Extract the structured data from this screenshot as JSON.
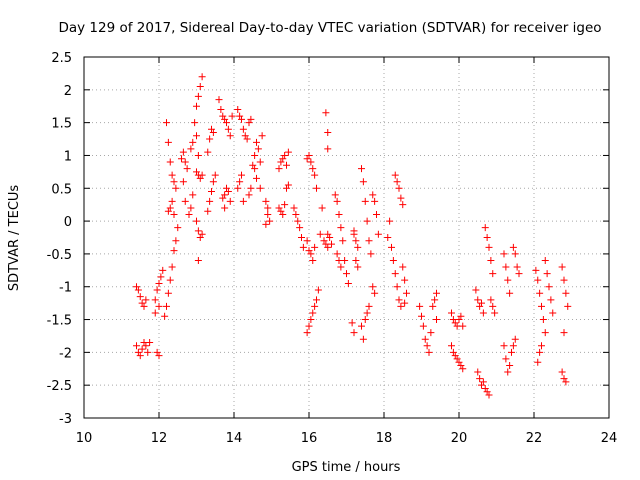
{
  "chart_data": {
    "type": "scatter",
    "title": "Day 129 of 2017, Sidereal Day-to-day VTEC variation (SDTVAR) for receiver igeo",
    "xlabel": "GPS time / hours",
    "ylabel": "SDTVAR / TECUs",
    "xlim": [
      10,
      24
    ],
    "ylim": [
      -3,
      2.5
    ],
    "xticks": [
      10,
      12,
      14,
      16,
      18,
      20,
      22,
      24
    ],
    "yticks": [
      -3,
      -2.5,
      -2,
      -1.5,
      -1,
      -0.5,
      0,
      0.5,
      1,
      1.5,
      2,
      2.5
    ],
    "xtick_labels": [
      "10",
      "12",
      "14",
      "16",
      "18",
      "20",
      "22",
      "24"
    ],
    "ytick_labels": [
      "-3",
      "-2.5",
      "-2",
      "-1.5",
      "-1",
      "-0.5",
      "0",
      "0.5",
      "1",
      "1.5",
      "2",
      "2.5"
    ],
    "grid": true,
    "marker": "+",
    "color": "#ff0000",
    "series": [
      {
        "name": "SDTVAR",
        "points": [
          [
            11.4,
            -1.0
          ],
          [
            11.45,
            -1.05
          ],
          [
            11.5,
            -1.15
          ],
          [
            11.55,
            -1.25
          ],
          [
            11.6,
            -1.3
          ],
          [
            11.65,
            -1.2
          ],
          [
            11.4,
            -1.9
          ],
          [
            11.45,
            -2.0
          ],
          [
            11.5,
            -2.05
          ],
          [
            11.55,
            -1.95
          ],
          [
            11.6,
            -1.85
          ],
          [
            11.65,
            -1.9
          ],
          [
            11.7,
            -2.0
          ],
          [
            11.75,
            -1.85
          ],
          [
            11.9,
            -1.2
          ],
          [
            11.95,
            -1.05
          ],
          [
            12.0,
            -0.95
          ],
          [
            12.05,
            -0.85
          ],
          [
            12.1,
            -0.75
          ],
          [
            11.9,
            -1.4
          ],
          [
            12.0,
            -1.3
          ],
          [
            11.95,
            -2.0
          ],
          [
            12.0,
            -2.05
          ],
          [
            12.15,
            -1.45
          ],
          [
            12.2,
            -1.3
          ],
          [
            12.25,
            -1.1
          ],
          [
            12.3,
            -0.9
          ],
          [
            12.35,
            -0.7
          ],
          [
            12.4,
            -0.45
          ],
          [
            12.45,
            -0.3
          ],
          [
            12.5,
            -0.1
          ],
          [
            12.2,
            1.5
          ],
          [
            12.25,
            1.2
          ],
          [
            12.3,
            0.9
          ],
          [
            12.35,
            0.7
          ],
          [
            12.4,
            0.6
          ],
          [
            12.45,
            0.5
          ],
          [
            12.25,
            0.15
          ],
          [
            12.3,
            0.2
          ],
          [
            12.35,
            0.3
          ],
          [
            12.4,
            0.1
          ],
          [
            12.6,
            0.95
          ],
          [
            12.65,
            1.05
          ],
          [
            12.7,
            0.9
          ],
          [
            12.75,
            0.8
          ],
          [
            12.65,
            0.6
          ],
          [
            12.7,
            0.3
          ],
          [
            12.8,
            0.1
          ],
          [
            12.85,
            0.2
          ],
          [
            12.9,
            0.4
          ],
          [
            12.85,
            1.1
          ],
          [
            12.9,
            1.2
          ],
          [
            12.95,
            1.5
          ],
          [
            13.0,
            1.75
          ],
          [
            13.05,
            1.9
          ],
          [
            13.1,
            2.05
          ],
          [
            13.15,
            2.2
          ],
          [
            13.0,
            1.3
          ],
          [
            13.05,
            1.0
          ],
          [
            13.0,
            0.75
          ],
          [
            13.05,
            0.7
          ],
          [
            13.1,
            0.65
          ],
          [
            13.15,
            0.7
          ],
          [
            13.0,
            0.0
          ],
          [
            13.05,
            -0.15
          ],
          [
            13.1,
            -0.25
          ],
          [
            13.15,
            -0.2
          ],
          [
            13.05,
            -0.6
          ],
          [
            13.3,
            0.15
          ],
          [
            13.35,
            0.3
          ],
          [
            13.4,
            0.45
          ],
          [
            13.45,
            0.6
          ],
          [
            13.5,
            0.7
          ],
          [
            13.35,
            1.25
          ],
          [
            13.4,
            1.4
          ],
          [
            13.45,
            1.35
          ],
          [
            13.3,
            1.05
          ],
          [
            13.6,
            1.85
          ],
          [
            13.65,
            1.7
          ],
          [
            13.7,
            1.6
          ],
          [
            13.75,
            1.55
          ],
          [
            13.8,
            1.5
          ],
          [
            13.85,
            1.4
          ],
          [
            13.9,
            1.3
          ],
          [
            13.95,
            1.6
          ],
          [
            13.7,
            0.35
          ],
          [
            13.75,
            0.4
          ],
          [
            13.8,
            0.5
          ],
          [
            13.85,
            0.45
          ],
          [
            13.9,
            0.3
          ],
          [
            13.75,
            0.2
          ],
          [
            14.1,
            1.7
          ],
          [
            14.15,
            1.6
          ],
          [
            14.2,
            1.55
          ],
          [
            14.25,
            1.4
          ],
          [
            14.3,
            1.3
          ],
          [
            14.35,
            1.25
          ],
          [
            14.1,
            0.5
          ],
          [
            14.15,
            0.6
          ],
          [
            14.2,
            0.7
          ],
          [
            14.25,
            0.3
          ],
          [
            14.4,
            0.4
          ],
          [
            14.45,
            0.5
          ],
          [
            14.5,
            0.85
          ],
          [
            14.55,
            1.0
          ],
          [
            14.6,
            1.2
          ],
          [
            14.65,
            1.1
          ],
          [
            14.7,
            0.9
          ],
          [
            14.75,
            1.3
          ],
          [
            14.4,
            1.5
          ],
          [
            14.45,
            1.55
          ],
          [
            14.55,
            0.8
          ],
          [
            14.6,
            0.65
          ],
          [
            14.7,
            0.5
          ],
          [
            14.85,
            0.3
          ],
          [
            14.9,
            0.2
          ],
          [
            14.95,
            0.0
          ],
          [
            14.85,
            -0.05
          ],
          [
            14.9,
            0.1
          ],
          [
            15.2,
            0.8
          ],
          [
            15.25,
            0.9
          ],
          [
            15.3,
            0.95
          ],
          [
            15.35,
            1.0
          ],
          [
            15.4,
            0.85
          ],
          [
            15.45,
            1.05
          ],
          [
            15.2,
            0.2
          ],
          [
            15.25,
            0.15
          ],
          [
            15.3,
            0.1
          ],
          [
            15.35,
            0.25
          ],
          [
            15.4,
            0.5
          ],
          [
            15.45,
            0.55
          ],
          [
            15.6,
            0.2
          ],
          [
            15.65,
            0.1
          ],
          [
            15.7,
            0.0
          ],
          [
            15.75,
            -0.1
          ],
          [
            15.8,
            -0.25
          ],
          [
            15.85,
            -0.4
          ],
          [
            15.95,
            0.95
          ],
          [
            16.0,
            1.0
          ],
          [
            16.05,
            0.9
          ],
          [
            16.1,
            0.8
          ],
          [
            16.15,
            0.7
          ],
          [
            16.2,
            0.5
          ],
          [
            15.95,
            -0.3
          ],
          [
            16.0,
            -0.45
          ],
          [
            16.05,
            -0.5
          ],
          [
            16.1,
            -0.6
          ],
          [
            16.15,
            -0.4
          ],
          [
            15.95,
            -1.7
          ],
          [
            16.0,
            -1.6
          ],
          [
            16.05,
            -1.5
          ],
          [
            16.1,
            -1.4
          ],
          [
            16.15,
            -1.3
          ],
          [
            16.2,
            -1.2
          ],
          [
            16.25,
            -1.05
          ],
          [
            16.3,
            -0.2
          ],
          [
            16.35,
            0.2
          ],
          [
            16.4,
            -0.3
          ],
          [
            16.45,
            -0.35
          ],
          [
            16.45,
            1.65
          ],
          [
            16.5,
            1.35
          ],
          [
            16.5,
            1.1
          ],
          [
            16.5,
            -0.2
          ],
          [
            16.55,
            -0.25
          ],
          [
            16.6,
            -0.35
          ],
          [
            16.5,
            -0.4
          ],
          [
            16.7,
            0.4
          ],
          [
            16.75,
            0.3
          ],
          [
            16.8,
            0.1
          ],
          [
            16.85,
            -0.1
          ],
          [
            16.9,
            -0.3
          ],
          [
            16.95,
            -0.6
          ],
          [
            17.0,
            -0.8
          ],
          [
            17.05,
            -0.95
          ],
          [
            16.75,
            -0.5
          ],
          [
            16.8,
            -0.6
          ],
          [
            16.85,
            -0.7
          ],
          [
            17.2,
            -0.2
          ],
          [
            17.25,
            -0.3
          ],
          [
            17.3,
            -0.4
          ],
          [
            17.25,
            -0.6
          ],
          [
            17.3,
            -0.7
          ],
          [
            17.2,
            -0.15
          ],
          [
            17.15,
            -1.55
          ],
          [
            17.2,
            -1.7
          ],
          [
            17.4,
            -1.6
          ],
          [
            17.45,
            -1.8
          ],
          [
            17.5,
            -1.5
          ],
          [
            17.55,
            -1.4
          ],
          [
            17.6,
            -1.3
          ],
          [
            17.4,
            0.8
          ],
          [
            17.45,
            0.6
          ],
          [
            17.5,
            0.3
          ],
          [
            17.55,
            0.0
          ],
          [
            17.6,
            -0.3
          ],
          [
            17.65,
            -0.5
          ],
          [
            17.7,
            0.4
          ],
          [
            17.75,
            0.3
          ],
          [
            17.8,
            0.1
          ],
          [
            17.85,
            -0.2
          ],
          [
            17.7,
            -1.0
          ],
          [
            17.75,
            -1.1
          ],
          [
            18.1,
            -0.25
          ],
          [
            18.15,
            0.0
          ],
          [
            18.2,
            -0.4
          ],
          [
            18.25,
            -0.6
          ],
          [
            18.3,
            -0.8
          ],
          [
            18.35,
            -1.0
          ],
          [
            18.4,
            -1.2
          ],
          [
            18.45,
            -1.3
          ],
          [
            18.3,
            0.7
          ],
          [
            18.35,
            0.6
          ],
          [
            18.4,
            0.5
          ],
          [
            18.45,
            0.35
          ],
          [
            18.5,
            0.25
          ],
          [
            18.5,
            -0.7
          ],
          [
            18.55,
            -0.9
          ],
          [
            18.6,
            -1.1
          ],
          [
            18.55,
            -1.25
          ],
          [
            18.95,
            -1.3
          ],
          [
            19.0,
            -1.45
          ],
          [
            19.05,
            -1.6
          ],
          [
            19.1,
            -1.8
          ],
          [
            19.15,
            -1.9
          ],
          [
            19.2,
            -2.0
          ],
          [
            19.25,
            -1.7
          ],
          [
            19.3,
            -1.3
          ],
          [
            19.35,
            -1.2
          ],
          [
            19.4,
            -1.5
          ],
          [
            19.4,
            -1.1
          ],
          [
            19.8,
            -1.4
          ],
          [
            19.85,
            -1.5
          ],
          [
            19.9,
            -1.55
          ],
          [
            19.95,
            -1.6
          ],
          [
            20.0,
            -1.5
          ],
          [
            20.05,
            -1.45
          ],
          [
            20.1,
            -1.6
          ],
          [
            19.8,
            -1.9
          ],
          [
            19.85,
            -2.0
          ],
          [
            19.9,
            -2.05
          ],
          [
            19.95,
            -2.1
          ],
          [
            20.0,
            -2.15
          ],
          [
            20.05,
            -2.2
          ],
          [
            20.1,
            -2.25
          ],
          [
            20.45,
            -1.05
          ],
          [
            20.5,
            -1.2
          ],
          [
            20.55,
            -1.3
          ],
          [
            20.6,
            -1.25
          ],
          [
            20.65,
            -1.4
          ],
          [
            20.5,
            -2.3
          ],
          [
            20.55,
            -2.4
          ],
          [
            20.6,
            -2.5
          ],
          [
            20.65,
            -2.45
          ],
          [
            20.7,
            -2.55
          ],
          [
            20.75,
            -2.6
          ],
          [
            20.8,
            -2.65
          ],
          [
            20.7,
            -0.1
          ],
          [
            20.75,
            -0.25
          ],
          [
            20.8,
            -0.4
          ],
          [
            20.85,
            -0.6
          ],
          [
            20.9,
            -0.8
          ],
          [
            20.85,
            -1.2
          ],
          [
            20.9,
            -1.3
          ],
          [
            20.95,
            -1.4
          ],
          [
            21.2,
            -0.5
          ],
          [
            21.25,
            -0.7
          ],
          [
            21.3,
            -0.9
          ],
          [
            21.35,
            -1.1
          ],
          [
            21.2,
            -1.9
          ],
          [
            21.25,
            -2.1
          ],
          [
            21.3,
            -2.3
          ],
          [
            21.35,
            -2.2
          ],
          [
            21.4,
            -2.0
          ],
          [
            21.45,
            -1.9
          ],
          [
            21.5,
            -1.8
          ],
          [
            21.45,
            -0.4
          ],
          [
            21.5,
            -0.5
          ],
          [
            21.55,
            -0.7
          ],
          [
            21.6,
            -0.8
          ],
          [
            22.05,
            -0.75
          ],
          [
            22.1,
            -0.9
          ],
          [
            22.15,
            -1.1
          ],
          [
            22.2,
            -1.3
          ],
          [
            22.25,
            -1.5
          ],
          [
            22.3,
            -1.7
          ],
          [
            22.1,
            -2.15
          ],
          [
            22.15,
            -2.0
          ],
          [
            22.2,
            -1.9
          ],
          [
            22.3,
            -0.6
          ],
          [
            22.35,
            -0.8
          ],
          [
            22.4,
            -1.0
          ],
          [
            22.45,
            -1.2
          ],
          [
            22.5,
            -1.4
          ],
          [
            22.75,
            -0.7
          ],
          [
            22.8,
            -0.9
          ],
          [
            22.85,
            -1.1
          ],
          [
            22.9,
            -1.3
          ],
          [
            22.75,
            -2.3
          ],
          [
            22.8,
            -2.4
          ],
          [
            22.85,
            -2.45
          ],
          [
            22.8,
            -1.7
          ]
        ]
      }
    ]
  }
}
